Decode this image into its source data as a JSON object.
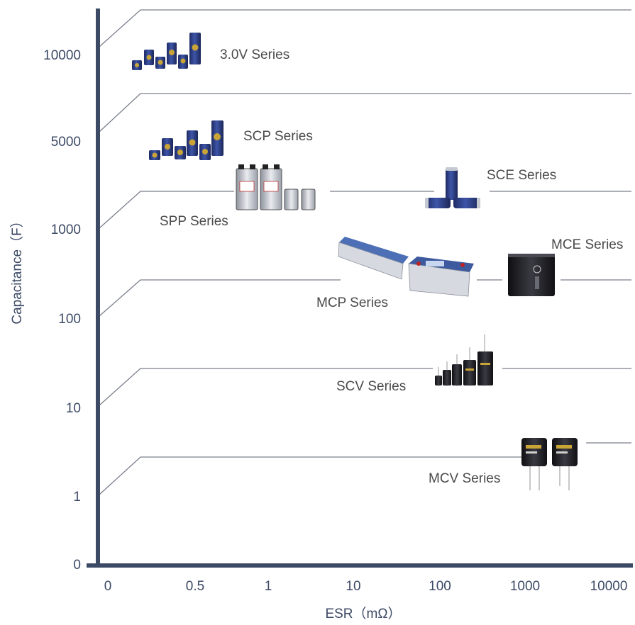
{
  "chart_data": {
    "type": "other",
    "title": "",
    "xlabel": "ESR（mΩ）",
    "ylabel": "Capacitance（F）",
    "x_ticks": [
      "0",
      "0.5",
      "1",
      "10",
      "100",
      "1000",
      "10000"
    ],
    "y_ticks": [
      "0",
      "1",
      "10",
      "100",
      "1000",
      "5000",
      "10000"
    ],
    "legend": "none",
    "grid": false,
    "series": [
      {
        "name": "3.0V Series",
        "capacitance": "10000",
        "esr_range": [
          "0.5",
          "10000"
        ]
      },
      {
        "name": "SCP Series",
        "capacitance": "5000",
        "esr_range": [
          "0.5",
          "10000"
        ]
      },
      {
        "name": "SPP Series",
        "capacitance": "1000",
        "esr_range": [
          "0.5",
          "10"
        ]
      },
      {
        "name": "SCE Series",
        "capacitance": "1000",
        "esr_range": [
          "100",
          "10000"
        ]
      },
      {
        "name": "MCP Series",
        "capacitance": "100",
        "esr_range": [
          "0.5",
          "100"
        ]
      },
      {
        "name": "MCE Series",
        "capacitance": "100",
        "esr_range": [
          "1000",
          "10000"
        ]
      },
      {
        "name": "SCV Series",
        "capacitance": "10",
        "esr_range": [
          "100",
          "10000"
        ]
      },
      {
        "name": "MCV Series",
        "capacitance": "1",
        "esr_range": [
          "1000",
          "10000"
        ]
      }
    ]
  },
  "colors": {
    "axis": "#3c4a66",
    "band_line": "#7a7f8c",
    "cell_blue": "#2a3a7c",
    "cell_gold": "#c9a437",
    "cell_silver": "#b9bdc6",
    "module_blue": "#3d5a9e",
    "module_black": "#1b1b1b"
  }
}
